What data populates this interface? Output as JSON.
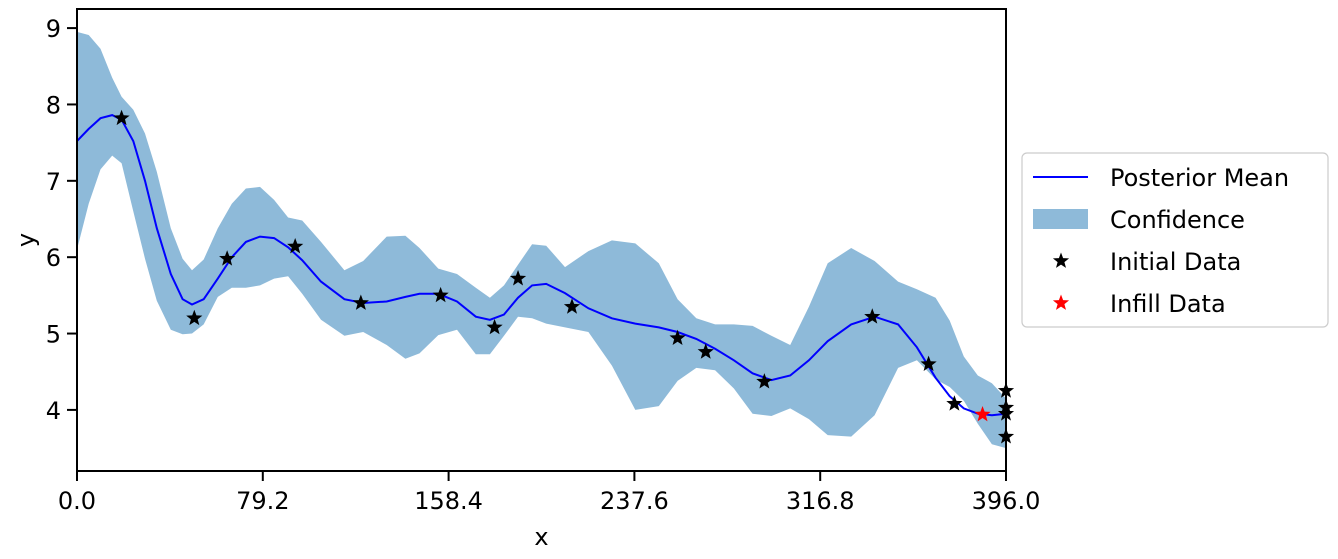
{
  "chart_data": {
    "type": "line",
    "xlabel": "x",
    "ylabel": "y",
    "xlim": [
      0,
      396
    ],
    "ylim": [
      3.2,
      9.25
    ],
    "xticks": [
      "0.0",
      "79.2",
      "158.4",
      "237.6",
      "316.8",
      "396.0"
    ],
    "yticks": [
      "4",
      "5",
      "6",
      "7",
      "8",
      "9"
    ],
    "grid": false,
    "legend_placement": "center-right outside",
    "colors": {
      "mean": "#0000ff",
      "confidence": "#8ebad9",
      "initial": "#000000",
      "infill": "#ff0000"
    },
    "series": [
      {
        "name": "Posterior Mean",
        "kind": "line",
        "x": [
          0,
          5,
          10,
          15,
          19,
          24,
          29,
          34,
          40,
          45,
          49,
          54,
          60,
          66,
          72,
          78,
          84,
          90,
          96,
          104,
          114,
          122,
          132,
          140,
          146,
          154,
          162,
          170,
          176,
          182,
          188,
          194,
          200,
          208,
          218,
          228,
          238,
          248,
          256,
          264,
          272,
          280,
          288,
          296,
          304,
          312,
          320,
          330,
          340,
          350,
          358,
          366,
          372,
          378,
          384,
          390,
          396
        ],
        "y": [
          7.52,
          7.68,
          7.82,
          7.86,
          7.8,
          7.52,
          7.0,
          6.38,
          5.78,
          5.45,
          5.38,
          5.45,
          5.72,
          6.0,
          6.2,
          6.27,
          6.25,
          6.13,
          5.96,
          5.68,
          5.45,
          5.4,
          5.42,
          5.48,
          5.52,
          5.52,
          5.42,
          5.22,
          5.18,
          5.25,
          5.47,
          5.63,
          5.65,
          5.53,
          5.33,
          5.2,
          5.13,
          5.08,
          5.02,
          4.93,
          4.8,
          4.65,
          4.48,
          4.39,
          4.45,
          4.65,
          4.9,
          5.12,
          5.22,
          5.12,
          4.82,
          4.42,
          4.18,
          4.02,
          3.95,
          3.93,
          3.95
        ]
      },
      {
        "name": "Confidence",
        "kind": "band",
        "x": [
          0,
          5,
          10,
          15,
          19,
          24,
          29,
          34,
          40,
          45,
          49,
          54,
          60,
          66,
          72,
          78,
          84,
          90,
          96,
          104,
          114,
          122,
          132,
          140,
          146,
          154,
          162,
          170,
          176,
          182,
          188,
          194,
          200,
          208,
          218,
          228,
          238,
          248,
          256,
          264,
          272,
          280,
          288,
          296,
          304,
          312,
          320,
          330,
          340,
          350,
          358,
          366,
          372,
          378,
          384,
          390,
          396
        ],
        "lower": [
          6.1,
          6.7,
          7.15,
          7.33,
          7.23,
          6.6,
          5.98,
          5.43,
          5.05,
          4.99,
          5.0,
          5.12,
          5.48,
          5.6,
          5.6,
          5.63,
          5.72,
          5.75,
          5.52,
          5.18,
          4.97,
          5.02,
          4.85,
          4.67,
          4.74,
          4.98,
          5.05,
          4.73,
          4.73,
          4.97,
          5.22,
          5.2,
          5.13,
          5.08,
          5.02,
          4.58,
          4.0,
          4.05,
          4.38,
          4.55,
          4.52,
          4.28,
          3.95,
          3.92,
          4.02,
          3.88,
          3.67,
          3.65,
          3.93,
          4.55,
          4.65,
          4.4,
          4.3,
          4.12,
          3.82,
          3.55,
          3.5
        ],
        "upper": [
          8.95,
          8.91,
          8.73,
          8.35,
          8.1,
          7.93,
          7.62,
          7.12,
          6.38,
          5.98,
          5.83,
          5.97,
          6.38,
          6.7,
          6.9,
          6.92,
          6.75,
          6.52,
          6.48,
          6.2,
          5.83,
          5.95,
          6.27,
          6.28,
          6.12,
          5.85,
          5.78,
          5.6,
          5.47,
          5.63,
          5.9,
          6.17,
          6.15,
          5.87,
          6.08,
          6.22,
          6.18,
          5.92,
          5.45,
          5.2,
          5.12,
          5.12,
          5.1,
          4.97,
          4.85,
          5.35,
          5.92,
          6.12,
          5.95,
          5.68,
          5.58,
          5.47,
          5.17,
          4.7,
          4.45,
          4.35,
          4.15
        ]
      },
      {
        "name": "Initial Data",
        "kind": "scatter",
        "x": [
          19,
          50,
          64,
          93,
          121,
          155,
          178,
          188,
          211,
          256,
          268,
          293,
          339,
          363,
          374,
          396,
          396,
          396,
          396
        ],
        "y": [
          7.82,
          5.2,
          5.98,
          6.14,
          5.4,
          5.5,
          5.08,
          5.72,
          5.35,
          4.94,
          4.76,
          4.37,
          5.22,
          4.6,
          4.08,
          4.25,
          4.03,
          3.95,
          3.65
        ]
      },
      {
        "name": "Infill Data",
        "kind": "scatter",
        "x": [
          386
        ],
        "y": [
          3.94
        ]
      }
    ]
  }
}
